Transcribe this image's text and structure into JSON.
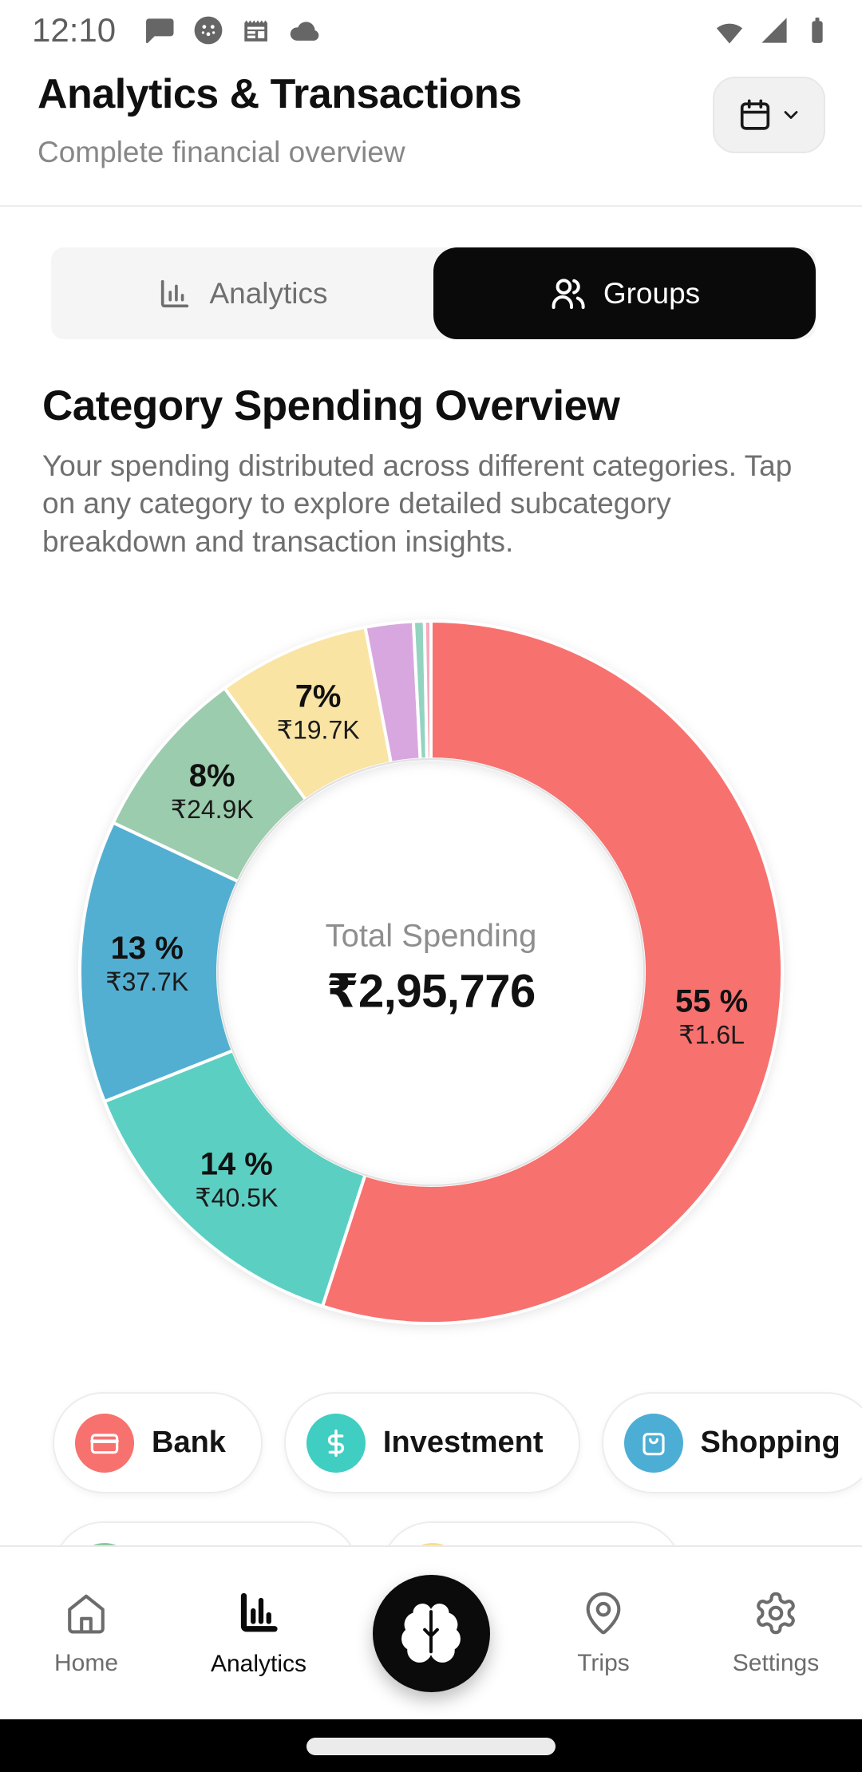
{
  "status_bar": {
    "time": "12:10",
    "left_icons": [
      "chat-icon",
      "face-icon",
      "news-icon",
      "cloud-icon"
    ],
    "right_icons": [
      "wifi-icon",
      "signal-icon",
      "battery-icon"
    ]
  },
  "header": {
    "title": "Analytics & Transactions",
    "subtitle": "Complete financial overview",
    "calendar_button_icons": [
      "calendar-icon",
      "chevron-down-icon"
    ]
  },
  "tabs": [
    {
      "label": "Analytics",
      "icon": "bar-chart-icon",
      "active": false
    },
    {
      "label": "Groups",
      "icon": "users-icon",
      "active": true
    }
  ],
  "section": {
    "title": "Category Spending Overview",
    "description": "Your spending distributed across different categories. Tap on any category to explore detailed subcategory breakdown and transaction insights."
  },
  "chart_data": {
    "type": "pie",
    "style": "donut",
    "title": "Category Spending Overview",
    "center_label": "Total Spending",
    "center_value": "₹2,95,776",
    "total_value": 295776,
    "start_angle_deg": -90,
    "direction": "clockwise",
    "segments": [
      {
        "pct": 55,
        "pct_label": "55 %",
        "value_label": "₹1.6L",
        "color": "#F7716F"
      },
      {
        "pct": 14,
        "pct_label": "14 %",
        "value_label": "₹40.5K",
        "color": "#5BCFC2"
      },
      {
        "pct": 13,
        "pct_label": "13 %",
        "value_label": "₹37.7K",
        "color": "#53AFD1"
      },
      {
        "pct": 8,
        "pct_label": "8%",
        "value_label": "₹24.9K",
        "color": "#9BCCAD"
      },
      {
        "pct": 7,
        "pct_label": "7%",
        "value_label": "₹19.7K",
        "color": "#F9E4A4"
      },
      {
        "pct": 2.2,
        "pct_label": "",
        "value_label": "",
        "color": "#D9A7DF"
      },
      {
        "pct": 0.5,
        "pct_label": "",
        "value_label": "",
        "color": "#93D4C0"
      },
      {
        "pct": 0.3,
        "pct_label": "",
        "value_label": "",
        "color": "#F6AABB"
      }
    ]
  },
  "chips": {
    "row1": [
      {
        "label": "Bank",
        "icon": "credit-card-icon",
        "color": "#F7716F"
      },
      {
        "label": "Investment",
        "icon": "dollar-icon",
        "color": "#3FCEC1"
      },
      {
        "label": "Shopping",
        "icon": "shopping-bag-icon",
        "color": "#4CAED5"
      }
    ],
    "row2": [
      {
        "label": "",
        "icon": "circle-icon",
        "color": "#8FC9A2"
      },
      {
        "label": "",
        "icon": "circle-icon",
        "color": "#F7DE92"
      }
    ]
  },
  "bottom_nav": {
    "items": [
      {
        "label": "Home",
        "icon": "home-icon",
        "active": false
      },
      {
        "label": "Analytics",
        "icon": "analytics-bars-icon",
        "active": true
      },
      {
        "label": "Trips",
        "icon": "map-pin-icon",
        "active": false
      },
      {
        "label": "Settings",
        "icon": "gear-icon",
        "active": false
      }
    ],
    "fab_icon": "brain-icon"
  }
}
